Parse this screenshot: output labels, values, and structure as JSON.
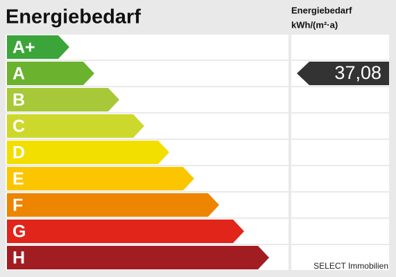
{
  "title": "Energiebedarf",
  "unit_header": {
    "line1": "Energiebedarf",
    "line2": "kWh/(m²·a)"
  },
  "classes": [
    {
      "label": "A+",
      "color": "#3ba53a"
    },
    {
      "label": "A",
      "color": "#6bb22e"
    },
    {
      "label": "B",
      "color": "#a7c838"
    },
    {
      "label": "C",
      "color": "#cdd82c"
    },
    {
      "label": "D",
      "color": "#f2df00"
    },
    {
      "label": "E",
      "color": "#fbc600"
    },
    {
      "label": "F",
      "color": "#ee8500"
    },
    {
      "label": "G",
      "color": "#e1251b"
    },
    {
      "label": "H",
      "color": "#a21d22"
    }
  ],
  "marker": {
    "class_index": 1,
    "text": "37,08"
  },
  "watermark": "SELECT Immobilien"
}
